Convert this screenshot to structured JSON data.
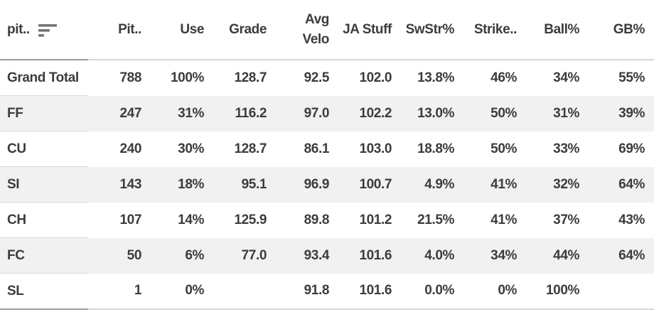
{
  "table": {
    "columns": [
      {
        "label": "pit..",
        "sorted": "descending"
      },
      {
        "label": "Pit.."
      },
      {
        "label": "Use"
      },
      {
        "label": "Grade"
      },
      {
        "label": "Avg Velo"
      },
      {
        "label": "JA Stuff"
      },
      {
        "label": "SwStr%"
      },
      {
        "label": "Strike.."
      },
      {
        "label": "Ball%"
      },
      {
        "label": "GB%"
      }
    ],
    "rows": [
      {
        "cells": [
          "Grand Total",
          "788",
          "100%",
          "128.7",
          "92.5",
          "102.0",
          "13.8%",
          "46%",
          "34%",
          "55%"
        ]
      },
      {
        "cells": [
          "FF",
          "247",
          "31%",
          "116.2",
          "97.0",
          "102.2",
          "13.0%",
          "50%",
          "31%",
          "39%"
        ]
      },
      {
        "cells": [
          "CU",
          "240",
          "30%",
          "128.7",
          "86.1",
          "103.0",
          "18.8%",
          "50%",
          "33%",
          "69%"
        ]
      },
      {
        "cells": [
          "SI",
          "143",
          "18%",
          "95.1",
          "96.9",
          "100.7",
          "4.9%",
          "41%",
          "32%",
          "64%"
        ]
      },
      {
        "cells": [
          "CH",
          "107",
          "14%",
          "125.9",
          "89.8",
          "101.2",
          "21.5%",
          "41%",
          "37%",
          "43%"
        ]
      },
      {
        "cells": [
          "FC",
          "50",
          "6%",
          "77.0",
          "93.4",
          "101.6",
          "4.0%",
          "34%",
          "44%",
          "64%"
        ]
      },
      {
        "cells": [
          "SL",
          "1",
          "0%",
          "",
          "91.8",
          "101.6",
          "0.0%",
          "0%",
          "100%",
          ""
        ]
      }
    ],
    "icons": {
      "sort": "sort-descending-icon"
    },
    "colors": {
      "text": "#3c3c3c",
      "row_stripe": "#f1f1f1",
      "border_light": "#d6d6d6",
      "border_dark": "#9b9b9b",
      "sort_icon": "#757575"
    }
  }
}
